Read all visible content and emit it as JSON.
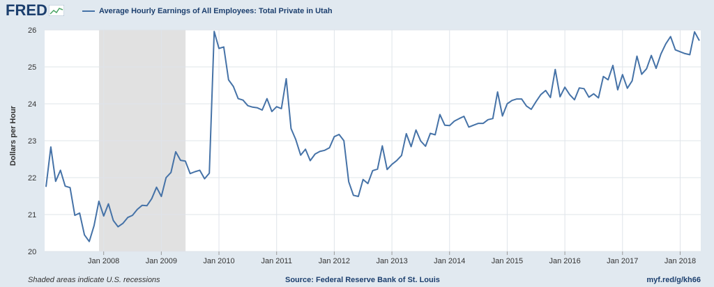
{
  "header": {
    "logo_text": "FRED",
    "series_title": "Average Hourly Earnings of All Employees: Total Private in Utah"
  },
  "footer": {
    "note": "Shaded areas indicate U.S. recessions",
    "source": "Source: Federal Reserve Bank of St. Louis",
    "link": "myf.red/g/kh66"
  },
  "colors": {
    "line": "#4572a7",
    "recession": "#e1e1e1",
    "background": "#e1e9f0",
    "plot_background": "#ffffff",
    "grid": "#dfe4ea"
  },
  "chart_data": {
    "type": "line",
    "title": "",
    "ylabel": "Dollars per Hour",
    "xlabel": "",
    "ylim": [
      20,
      26
    ],
    "yticks": [
      20,
      21,
      22,
      23,
      24,
      25,
      26
    ],
    "xticks": [
      {
        "t": 2008.0,
        "label": "Jan 2008"
      },
      {
        "t": 2009.0,
        "label": "Jan 2009"
      },
      {
        "t": 2010.0,
        "label": "Jan 2010"
      },
      {
        "t": 2011.0,
        "label": "Jan 2011"
      },
      {
        "t": 2012.0,
        "label": "Jan 2012"
      },
      {
        "t": 2013.0,
        "label": "Jan 2013"
      },
      {
        "t": 2014.0,
        "label": "Jan 2014"
      },
      {
        "t": 2015.0,
        "label": "Jan 2015"
      },
      {
        "t": 2016.0,
        "label": "Jan 2016"
      },
      {
        "t": 2017.0,
        "label": "Jan 2017"
      },
      {
        "t": 2018.0,
        "label": "Jan 2018"
      }
    ],
    "recessions": [
      {
        "start": 2007.92,
        "end": 2009.42
      }
    ],
    "grid": true,
    "series": [
      {
        "points": [
          [
            2007.0,
            21.75
          ],
          [
            2007.083,
            22.83
          ],
          [
            2007.167,
            21.9
          ],
          [
            2007.25,
            22.2
          ],
          [
            2007.333,
            21.77
          ],
          [
            2007.417,
            21.73
          ],
          [
            2007.5,
            20.98
          ],
          [
            2007.583,
            21.04
          ],
          [
            2007.667,
            20.45
          ],
          [
            2007.75,
            20.27
          ],
          [
            2007.833,
            20.7
          ],
          [
            2007.917,
            21.36
          ],
          [
            2008.0,
            20.96
          ],
          [
            2008.083,
            21.29
          ],
          [
            2008.167,
            20.84
          ],
          [
            2008.25,
            20.67
          ],
          [
            2008.333,
            20.76
          ],
          [
            2008.417,
            20.92
          ],
          [
            2008.5,
            20.98
          ],
          [
            2008.583,
            21.14
          ],
          [
            2008.667,
            21.25
          ],
          [
            2008.75,
            21.24
          ],
          [
            2008.833,
            21.43
          ],
          [
            2008.917,
            21.74
          ],
          [
            2009.0,
            21.49
          ],
          [
            2009.083,
            22.0
          ],
          [
            2009.167,
            22.14
          ],
          [
            2009.25,
            22.7
          ],
          [
            2009.333,
            22.47
          ],
          [
            2009.417,
            22.45
          ],
          [
            2009.5,
            22.11
          ],
          [
            2009.583,
            22.16
          ],
          [
            2009.667,
            22.2
          ],
          [
            2009.75,
            21.97
          ],
          [
            2009.833,
            22.12
          ],
          [
            2009.917,
            25.96
          ],
          [
            2010.0,
            25.5
          ],
          [
            2010.083,
            25.54
          ],
          [
            2010.167,
            24.65
          ],
          [
            2010.25,
            24.47
          ],
          [
            2010.333,
            24.14
          ],
          [
            2010.417,
            24.1
          ],
          [
            2010.5,
            23.95
          ],
          [
            2010.583,
            23.91
          ],
          [
            2010.667,
            23.89
          ],
          [
            2010.75,
            23.83
          ],
          [
            2010.833,
            24.14
          ],
          [
            2010.917,
            23.79
          ],
          [
            2011.0,
            23.92
          ],
          [
            2011.083,
            23.87
          ],
          [
            2011.167,
            24.68
          ],
          [
            2011.25,
            23.33
          ],
          [
            2011.333,
            23.03
          ],
          [
            2011.417,
            22.61
          ],
          [
            2011.5,
            22.77
          ],
          [
            2011.583,
            22.46
          ],
          [
            2011.667,
            22.64
          ],
          [
            2011.75,
            22.71
          ],
          [
            2011.833,
            22.74
          ],
          [
            2011.917,
            22.81
          ],
          [
            2012.0,
            23.11
          ],
          [
            2012.083,
            23.17
          ],
          [
            2012.167,
            23.0
          ],
          [
            2012.25,
            21.89
          ],
          [
            2012.333,
            21.52
          ],
          [
            2012.417,
            21.49
          ],
          [
            2012.5,
            21.95
          ],
          [
            2012.583,
            21.84
          ],
          [
            2012.667,
            22.19
          ],
          [
            2012.75,
            22.23
          ],
          [
            2012.833,
            22.86
          ],
          [
            2012.917,
            22.22
          ],
          [
            2013.0,
            22.36
          ],
          [
            2013.083,
            22.46
          ],
          [
            2013.167,
            22.6
          ],
          [
            2013.25,
            23.19
          ],
          [
            2013.333,
            22.84
          ],
          [
            2013.417,
            23.29
          ],
          [
            2013.5,
            22.99
          ],
          [
            2013.583,
            22.85
          ],
          [
            2013.667,
            23.2
          ],
          [
            2013.75,
            23.16
          ],
          [
            2013.833,
            23.71
          ],
          [
            2013.917,
            23.42
          ],
          [
            2014.0,
            23.41
          ],
          [
            2014.083,
            23.53
          ],
          [
            2014.167,
            23.6
          ],
          [
            2014.25,
            23.66
          ],
          [
            2014.333,
            23.37
          ],
          [
            2014.417,
            23.42
          ],
          [
            2014.5,
            23.47
          ],
          [
            2014.583,
            23.47
          ],
          [
            2014.667,
            23.57
          ],
          [
            2014.75,
            23.6
          ],
          [
            2014.833,
            24.32
          ],
          [
            2014.917,
            23.67
          ],
          [
            2015.0,
            24.0
          ],
          [
            2015.083,
            24.09
          ],
          [
            2015.167,
            24.13
          ],
          [
            2015.25,
            24.13
          ],
          [
            2015.333,
            23.94
          ],
          [
            2015.417,
            23.85
          ],
          [
            2015.5,
            24.06
          ],
          [
            2015.583,
            24.25
          ],
          [
            2015.667,
            24.36
          ],
          [
            2015.75,
            24.17
          ],
          [
            2015.833,
            24.93
          ],
          [
            2015.917,
            24.19
          ],
          [
            2016.0,
            24.45
          ],
          [
            2016.083,
            24.25
          ],
          [
            2016.167,
            24.11
          ],
          [
            2016.25,
            24.43
          ],
          [
            2016.333,
            24.41
          ],
          [
            2016.417,
            24.18
          ],
          [
            2016.5,
            24.27
          ],
          [
            2016.583,
            24.16
          ],
          [
            2016.667,
            24.74
          ],
          [
            2016.75,
            24.65
          ],
          [
            2016.833,
            25.04
          ],
          [
            2016.917,
            24.38
          ],
          [
            2017.0,
            24.79
          ],
          [
            2017.083,
            24.42
          ],
          [
            2017.167,
            24.62
          ],
          [
            2017.25,
            25.29
          ],
          [
            2017.333,
            24.8
          ],
          [
            2017.417,
            24.95
          ],
          [
            2017.5,
            25.31
          ],
          [
            2017.583,
            24.96
          ],
          [
            2017.667,
            25.35
          ],
          [
            2017.75,
            25.62
          ],
          [
            2017.833,
            25.82
          ],
          [
            2017.917,
            25.46
          ],
          [
            2018.0,
            25.41
          ],
          [
            2018.083,
            25.36
          ],
          [
            2018.167,
            25.33
          ],
          [
            2018.25,
            25.95
          ],
          [
            2018.333,
            25.71
          ]
        ]
      }
    ]
  }
}
